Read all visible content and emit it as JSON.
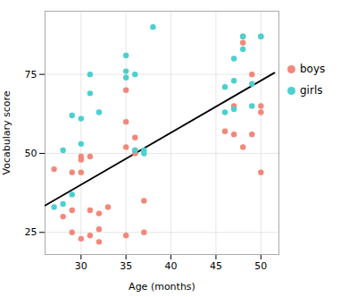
{
  "chart_data": {
    "type": "scatter",
    "xlabel": "Age (months)",
    "ylabel": "Vocabulary score",
    "series": [
      {
        "name": "boys",
        "color": "#F4877A",
        "x": [
          27,
          28,
          29,
          29,
          29,
          30,
          30,
          30,
          30,
          31,
          31,
          31,
          32,
          32,
          32,
          33,
          35,
          35,
          35,
          35,
          36,
          36,
          36,
          37,
          37,
          46,
          47,
          47,
          48,
          48,
          48,
          49,
          49,
          50,
          50,
          50
        ],
        "values": [
          45,
          30,
          32,
          25,
          44,
          49,
          48,
          44,
          23,
          49,
          24,
          32,
          22,
          26,
          31,
          33,
          70,
          52,
          60,
          24,
          51,
          50,
          55,
          25,
          35,
          57,
          65,
          56,
          87,
          85,
          52,
          56,
          75,
          63,
          44,
          65
        ]
      },
      {
        "name": "girls",
        "color": "#4DCFCF",
        "x": [
          27,
          28,
          28,
          29,
          29,
          30,
          30,
          31,
          31,
          32,
          35,
          35,
          35,
          36,
          36,
          37,
          37,
          38,
          46,
          46,
          47,
          47,
          47,
          48,
          48,
          49,
          49,
          50,
          50
        ],
        "values": [
          33,
          34,
          51,
          37,
          62,
          53,
          61,
          69,
          75,
          63,
          81,
          76,
          74,
          75,
          51,
          51,
          50,
          90,
          63,
          71,
          64,
          73,
          80,
          83,
          87,
          72,
          65,
          87,
          87
        ]
      },
      {
        "type": "line",
        "color": "#000000",
        "x": [
          26.0,
          51.5
        ],
        "values": [
          33.5,
          75.5
        ]
      }
    ],
    "xlim": [
      26,
      52
    ],
    "ylim": [
      18,
      95
    ],
    "xticks": [
      30,
      35,
      40,
      45,
      50
    ],
    "yticks": [
      25,
      50,
      75
    ],
    "grid": true,
    "legend": "right"
  }
}
